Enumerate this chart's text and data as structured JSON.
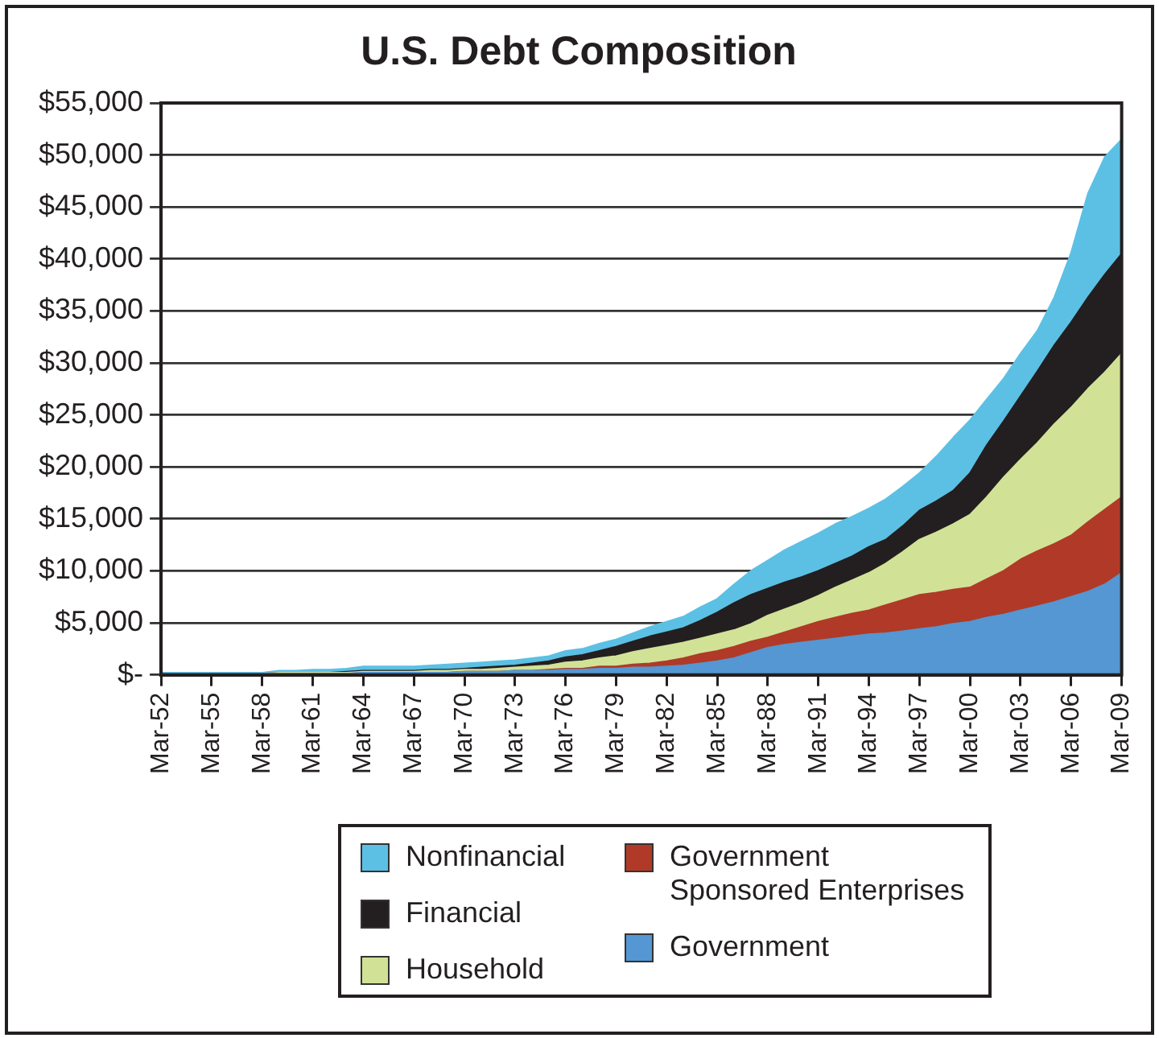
{
  "chart_data": {
    "type": "area",
    "title": "U.S. Debt Composition",
    "stacked": true,
    "grid": "y",
    "legend": "bottom",
    "categories": [
      "Mar-52",
      null,
      null,
      "Mar-55",
      null,
      null,
      "Mar-58",
      null,
      null,
      "Mar-61",
      null,
      null,
      "Mar-64",
      null,
      null,
      "Mar-67",
      null,
      null,
      "Mar-70",
      null,
      null,
      "Mar-73",
      null,
      null,
      "Mar-76",
      null,
      null,
      "Mar-79",
      null,
      null,
      "Mar-82",
      null,
      null,
      "Mar-85",
      null,
      null,
      "Mar-88",
      null,
      null,
      "Mar-91",
      null,
      null,
      "Mar-94",
      null,
      null,
      "Mar-97",
      null,
      null,
      "Mar-00",
      null,
      null,
      "Mar-03",
      null,
      null,
      "Mar-06",
      null,
      null,
      "Mar-09"
    ],
    "ylim": [
      0,
      55000
    ],
    "yticks": [
      {
        "value": 0,
        "label": "$-"
      },
      {
        "value": 5000,
        "label": "$5,000"
      },
      {
        "value": 10000,
        "label": "$10,000"
      },
      {
        "value": 15000,
        "label": "$15,000"
      },
      {
        "value": 20000,
        "label": "$20,000"
      },
      {
        "value": 25000,
        "label": "$25,000"
      },
      {
        "value": 30000,
        "label": "$30,000"
      },
      {
        "value": 35000,
        "label": "$35,000"
      },
      {
        "value": 40000,
        "label": "$40,000"
      },
      {
        "value": 45000,
        "label": "$45,000"
      },
      {
        "value": 50000,
        "label": "$50,000"
      },
      {
        "value": 55000,
        "label": "$55,000"
      }
    ],
    "series": [
      {
        "name": "Government",
        "color": "#5497d2",
        "values": [
          100,
          100,
          100,
          100,
          100,
          100,
          100,
          100,
          100,
          100,
          100,
          100,
          200,
          200,
          200,
          200,
          200,
          200,
          300,
          300,
          300,
          400,
          400,
          400,
          500,
          500,
          600,
          600,
          700,
          700,
          800,
          900,
          1100,
          1300,
          1600,
          2100,
          2600,
          2900,
          3100,
          3300,
          3500,
          3700,
          3900,
          4000,
          4200,
          4400,
          4600,
          4900,
          5100,
          5500,
          5800,
          6200,
          6600,
          7000,
          7500,
          8000,
          8700,
          9800
        ]
      },
      {
        "name": "Government Sponsored Enterprises",
        "color": "#b03a27",
        "values": [
          0,
          0,
          0,
          0,
          0,
          0,
          0,
          0,
          0,
          0,
          0,
          0,
          0,
          0,
          0,
          0,
          0,
          0,
          0,
          0,
          0,
          0,
          0,
          100,
          100,
          100,
          200,
          200,
          300,
          400,
          500,
          700,
          900,
          1000,
          1100,
          1100,
          1000,
          1200,
          1500,
          1800,
          2000,
          2200,
          2300,
          2700,
          3000,
          3300,
          3300,
          3300,
          3300,
          3700,
          4200,
          4900,
          5300,
          5600,
          5900,
          6700,
          7200,
          7300
        ]
      },
      {
        "name": "Household",
        "color": "#d1e297",
        "values": [
          0,
          0,
          0,
          0,
          0,
          0,
          0,
          100,
          100,
          100,
          100,
          100,
          100,
          100,
          100,
          100,
          200,
          200,
          200,
          200,
          300,
          300,
          400,
          400,
          600,
          700,
          800,
          1000,
          1200,
          1400,
          1500,
          1500,
          1500,
          1600,
          1600,
          1700,
          2100,
          2200,
          2300,
          2500,
          2900,
          3200,
          3600,
          4000,
          4600,
          5300,
          5800,
          6300,
          7000,
          7900,
          9000,
          9600,
          10400,
          11500,
          12300,
          12800,
          13200,
          13800
        ]
      },
      {
        "name": "Financial",
        "color": "#231f20",
        "values": [
          0,
          0,
          0,
          0,
          0,
          0,
          0,
          0,
          0,
          0,
          0,
          100,
          100,
          100,
          100,
          100,
          100,
          100,
          100,
          200,
          200,
          200,
          300,
          400,
          500,
          600,
          700,
          900,
          1000,
          1200,
          1300,
          1400,
          1700,
          2100,
          2600,
          2800,
          2600,
          2600,
          2500,
          2400,
          2300,
          2300,
          2500,
          2300,
          2500,
          2800,
          3000,
          3200,
          4000,
          5000,
          5400,
          6100,
          6900,
          7600,
          8200,
          8800,
          9400,
          9600
        ]
      },
      {
        "name": "Nonfinancial",
        "color": "#5cc0e4",
        "values": [
          100,
          100,
          100,
          100,
          100,
          100,
          100,
          200,
          200,
          300,
          300,
          300,
          400,
          400,
          400,
          400,
          400,
          500,
          500,
          500,
          500,
          500,
          500,
          500,
          600,
          600,
          700,
          700,
          800,
          900,
          1000,
          1100,
          1300,
          1300,
          1800,
          2300,
          2700,
          3100,
          3400,
          3600,
          3800,
          3800,
          3700,
          3900,
          3800,
          3600,
          4300,
          5100,
          5100,
          4400,
          4100,
          4100,
          3900,
          4600,
          6700,
          10000,
          11300,
          11000
        ]
      }
    ]
  }
}
